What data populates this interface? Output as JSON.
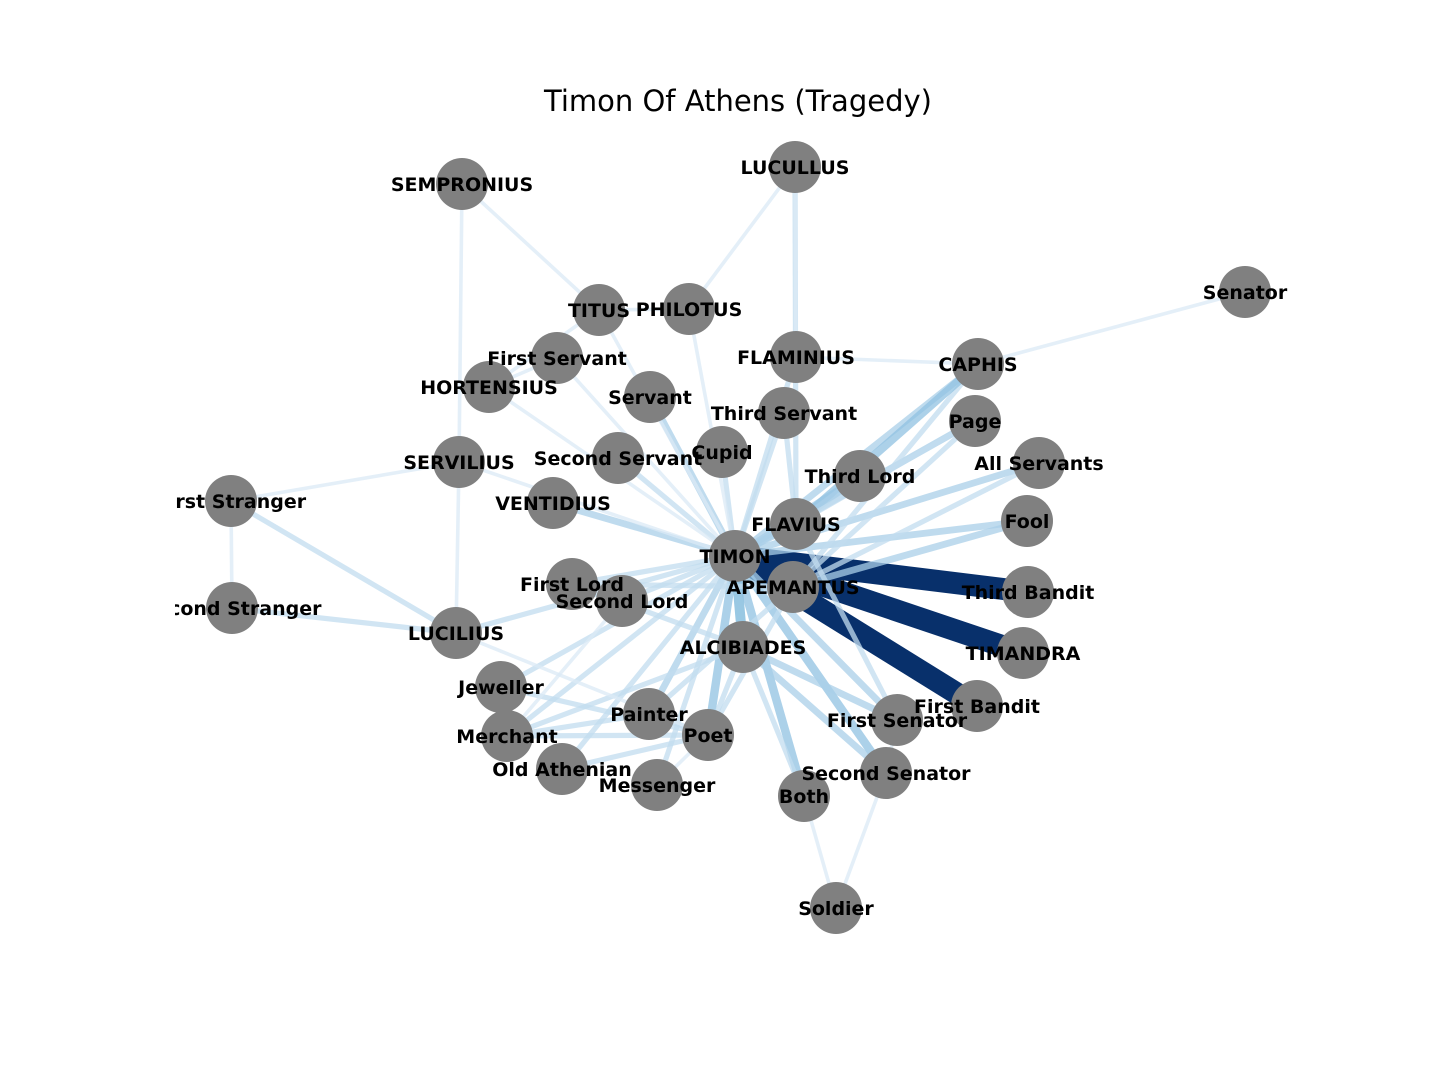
{
  "title": "Timon Of Athens (Tragedy)",
  "colors": {
    "node": "#808080",
    "edge_light": "#dbe9f6",
    "edge_mid": "#6aaed6",
    "edge_dark": "#08306b"
  },
  "nodes": [
    {
      "id": "TIMON",
      "label": "TIMON"
    },
    {
      "id": "APEMANTUS",
      "label": "APEMANTUS"
    },
    {
      "id": "ALCIBIADES",
      "label": "ALCIBIADES"
    },
    {
      "id": "FLAVIUS",
      "label": "FLAVIUS"
    },
    {
      "id": "First Lord",
      "label": "First Lord"
    },
    {
      "id": "Second Lord",
      "label": "Second Lord"
    },
    {
      "id": "Third Lord",
      "label": "Third Lord"
    },
    {
      "id": "Poet",
      "label": "Poet"
    },
    {
      "id": "Painter",
      "label": "Painter"
    },
    {
      "id": "Jeweller",
      "label": "Jeweller"
    },
    {
      "id": "Merchant",
      "label": "Merchant"
    },
    {
      "id": "Old Athenian",
      "label": "Old Athenian"
    },
    {
      "id": "Messenger",
      "label": "Messenger"
    },
    {
      "id": "LUCILIUS",
      "label": "LUCILIUS"
    },
    {
      "id": "SERVILIUS",
      "label": "SERVILIUS"
    },
    {
      "id": "VENTIDIUS",
      "label": "VENTIDIUS"
    },
    {
      "id": "Second Servant",
      "label": "Second Servant"
    },
    {
      "id": "Servant",
      "label": "Servant"
    },
    {
      "id": "Cupid",
      "label": "Cupid"
    },
    {
      "id": "Third Servant",
      "label": "Third Servant"
    },
    {
      "id": "FLAMINIUS",
      "label": "FLAMINIUS"
    },
    {
      "id": "HORTENSIUS",
      "label": "HORTENSIUS"
    },
    {
      "id": "First Servant",
      "label": "First Servant"
    },
    {
      "id": "TITUS",
      "label": "TITUS"
    },
    {
      "id": "PHILOTUS",
      "label": "PHILOTUS"
    },
    {
      "id": "LUCULLUS",
      "label": "LUCULLUS"
    },
    {
      "id": "SEMPRONIUS",
      "label": "SEMPRONIUS"
    },
    {
      "id": "Senator",
      "label": "Senator"
    },
    {
      "id": "CAPHIS",
      "label": "CAPHIS"
    },
    {
      "id": "Page",
      "label": "Page"
    },
    {
      "id": "All Servants",
      "label": "All Servants"
    },
    {
      "id": "Fool",
      "label": "Fool"
    },
    {
      "id": "Third Bandit",
      "label": "Third Bandit"
    },
    {
      "id": "TIMANDRA",
      "label": "TIMANDRA"
    },
    {
      "id": "First Bandit",
      "label": "First Bandit"
    },
    {
      "id": "First Senator",
      "label": "First Senator"
    },
    {
      "id": "Second Senator",
      "label": "Second Senator"
    },
    {
      "id": "Both",
      "label": "Both"
    },
    {
      "id": "Soldier",
      "label": "Soldier"
    },
    {
      "id": "First Stranger",
      "label": "First Stranger"
    },
    {
      "id": "Second Stranger",
      "label": "Second Stranger"
    }
  ],
  "edges": [
    {
      "source": "TIMON",
      "target": "APEMANTUS",
      "weight": 10
    },
    {
      "source": "TIMON",
      "target": "Third Bandit",
      "weight": 10
    },
    {
      "source": "TIMON",
      "target": "TIMANDRA",
      "weight": 10
    },
    {
      "source": "TIMON",
      "target": "First Bandit",
      "weight": 10
    },
    {
      "source": "TIMON",
      "target": "ALCIBIADES",
      "weight": 5
    },
    {
      "source": "TIMON",
      "target": "Second Senator",
      "weight": 4
    },
    {
      "source": "TIMON",
      "target": "First Senator",
      "weight": 3
    },
    {
      "source": "TIMON",
      "target": "Both",
      "weight": 4
    },
    {
      "source": "TIMON",
      "target": "Poet",
      "weight": 4
    },
    {
      "source": "TIMON",
      "target": "Painter",
      "weight": 3
    },
    {
      "source": "TIMON",
      "target": "FLAVIUS",
      "weight": 3
    },
    {
      "source": "TIMON",
      "target": "Fool",
      "weight": 3
    },
    {
      "source": "TIMON",
      "target": "All Servants",
      "weight": 3
    },
    {
      "source": "TIMON",
      "target": "CAPHIS",
      "weight": 3
    },
    {
      "source": "TIMON",
      "target": "Page",
      "weight": 3
    },
    {
      "source": "TIMON",
      "target": "Third Lord",
      "weight": 3
    },
    {
      "source": "TIMON",
      "target": "VENTIDIUS",
      "weight": 3
    },
    {
      "source": "TIMON",
      "target": "Servant",
      "weight": 3
    },
    {
      "source": "TIMON",
      "target": "Third Servant",
      "weight": 2
    },
    {
      "source": "TIMON",
      "target": "Cupid",
      "weight": 2
    },
    {
      "source": "TIMON",
      "target": "Second Servant",
      "weight": 2
    },
    {
      "source": "TIMON",
      "target": "First Lord",
      "weight": 2
    },
    {
      "source": "TIMON",
      "target": "Second Lord",
      "weight": 2
    },
    {
      "source": "TIMON",
      "target": "Merchant",
      "weight": 2
    },
    {
      "source": "TIMON",
      "target": "Old Athenian",
      "weight": 2
    },
    {
      "source": "TIMON",
      "target": "Jeweller",
      "weight": 2
    },
    {
      "source": "TIMON",
      "target": "LUCILIUS",
      "weight": 2
    },
    {
      "source": "TIMON",
      "target": "Messenger",
      "weight": 2
    },
    {
      "source": "TIMON",
      "target": "FLAMINIUS",
      "weight": 2
    },
    {
      "source": "TIMON",
      "target": "PHILOTUS",
      "weight": 1
    },
    {
      "source": "TIMON",
      "target": "HORTENSIUS",
      "weight": 1
    },
    {
      "source": "TIMON",
      "target": "First Servant",
      "weight": 1
    },
    {
      "source": "TIMON",
      "target": "TITUS",
      "weight": 1
    },
    {
      "source": "TIMON",
      "target": "SERVILIUS",
      "weight": 1
    },
    {
      "source": "APEMANTUS",
      "target": "Fool",
      "weight": 3
    },
    {
      "source": "APEMANTUS",
      "target": "Page",
      "weight": 2
    },
    {
      "source": "APEMANTUS",
      "target": "CAPHIS",
      "weight": 2
    },
    {
      "source": "APEMANTUS",
      "target": "All Servants",
      "weight": 2
    },
    {
      "source": "APEMANTUS",
      "target": "First Lord",
      "weight": 2
    },
    {
      "source": "APEMANTUS",
      "target": "Poet",
      "weight": 2
    },
    {
      "source": "APEMANTUS",
      "target": "Painter",
      "weight": 2
    },
    {
      "source": "ALCIBIADES",
      "target": "First Senator",
      "weight": 3
    },
    {
      "source": "ALCIBIADES",
      "target": "Second Senator",
      "weight": 3
    },
    {
      "source": "ALCIBIADES",
      "target": "Both",
      "weight": 2
    },
    {
      "source": "ALCIBIADES",
      "target": "Poet",
      "weight": 2
    },
    {
      "source": "ALCIBIADES",
      "target": "Merchant",
      "weight": 2
    },
    {
      "source": "ALCIBIADES",
      "target": "First Lord",
      "weight": 2
    },
    {
      "source": "FLAVIUS",
      "target": "CAPHIS",
      "weight": 4
    },
    {
      "source": "FLAVIUS",
      "target": "Third Lord",
      "weight": 3
    },
    {
      "source": "FLAVIUS",
      "target": "Page",
      "weight": 2
    },
    {
      "source": "FLAVIUS",
      "target": "LUCULLUS",
      "weight": 2
    },
    {
      "source": "FLAVIUS",
      "target": "Third Servant",
      "weight": 2
    },
    {
      "source": "FLAVIUS",
      "target": "First Senator",
      "weight": 2
    },
    {
      "source": "Poet",
      "target": "Painter",
      "weight": 2
    },
    {
      "source": "Poet",
      "target": "Jeweller",
      "weight": 2
    },
    {
      "source": "Poet",
      "target": "Merchant",
      "weight": 2
    },
    {
      "source": "Poet",
      "target": "Old Athenian",
      "weight": 2
    },
    {
      "source": "Poet",
      "target": "Messenger",
      "weight": 1
    },
    {
      "source": "Painter",
      "target": "Merchant",
      "weight": 2
    },
    {
      "source": "LUCILIUS",
      "target": "First Stranger",
      "weight": 2
    },
    {
      "source": "LUCILIUS",
      "target": "Second Stranger",
      "weight": 2
    },
    {
      "source": "LUCILIUS",
      "target": "SERVILIUS",
      "weight": 1
    },
    {
      "source": "LUCILIUS",
      "target": "Poet",
      "weight": 1
    },
    {
      "source": "SERVILIUS",
      "target": "First Stranger",
      "weight": 1
    },
    {
      "source": "SERVILIUS",
      "target": "SEMPRONIUS",
      "weight": 1
    },
    {
      "source": "First Stranger",
      "target": "Second Stranger",
      "weight": 1
    },
    {
      "source": "SEMPRONIUS",
      "target": "TITUS",
      "weight": 1
    },
    {
      "source": "LUCULLUS",
      "target": "PHILOTUS",
      "weight": 1
    },
    {
      "source": "LUCULLUS",
      "target": "FLAMINIUS",
      "weight": 1
    },
    {
      "source": "CAPHIS",
      "target": "Senator",
      "weight": 1
    },
    {
      "source": "CAPHIS",
      "target": "FLAMINIUS",
      "weight": 1
    },
    {
      "source": "TITUS",
      "target": "PHILOTUS",
      "weight": 1
    },
    {
      "source": "HORTENSIUS",
      "target": "First Servant",
      "weight": 1
    },
    {
      "source": "HORTENSIUS",
      "target": "TITUS",
      "weight": 1
    },
    {
      "source": "Soldier",
      "target": "Both",
      "weight": 1
    },
    {
      "source": "Soldier",
      "target": "Second Senator",
      "weight": 1
    },
    {
      "source": "Second Senator",
      "target": "First Senator",
      "weight": 1
    },
    {
      "source": "Second Lord",
      "target": "First Lord",
      "weight": 1
    },
    {
      "source": "Second Lord",
      "target": "Merchant",
      "weight": 1
    }
  ]
}
